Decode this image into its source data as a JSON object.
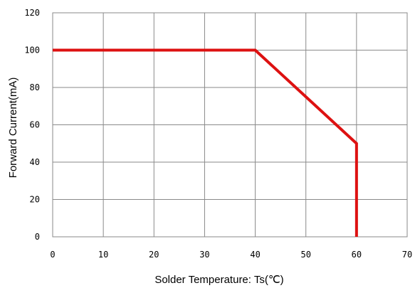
{
  "chart_data": {
    "type": "line",
    "title": "",
    "xlabel": "Solder Temperature: Ts(℃)",
    "ylabel": "Forward Current(mA)",
    "xlim": [
      0,
      70
    ],
    "ylim": [
      0,
      120
    ],
    "x_ticks": [
      "0",
      "10",
      "20",
      "30",
      "40",
      "50",
      "60",
      "70"
    ],
    "y_ticks": [
      "0",
      "20",
      "40",
      "60",
      "80",
      "100",
      "120"
    ],
    "grid": true,
    "legend": "none",
    "series": [
      {
        "color": "#dd1111",
        "points": [
          [
            0,
            100
          ],
          [
            40,
            100
          ],
          [
            60,
            50
          ],
          [
            60,
            0
          ]
        ]
      }
    ]
  }
}
